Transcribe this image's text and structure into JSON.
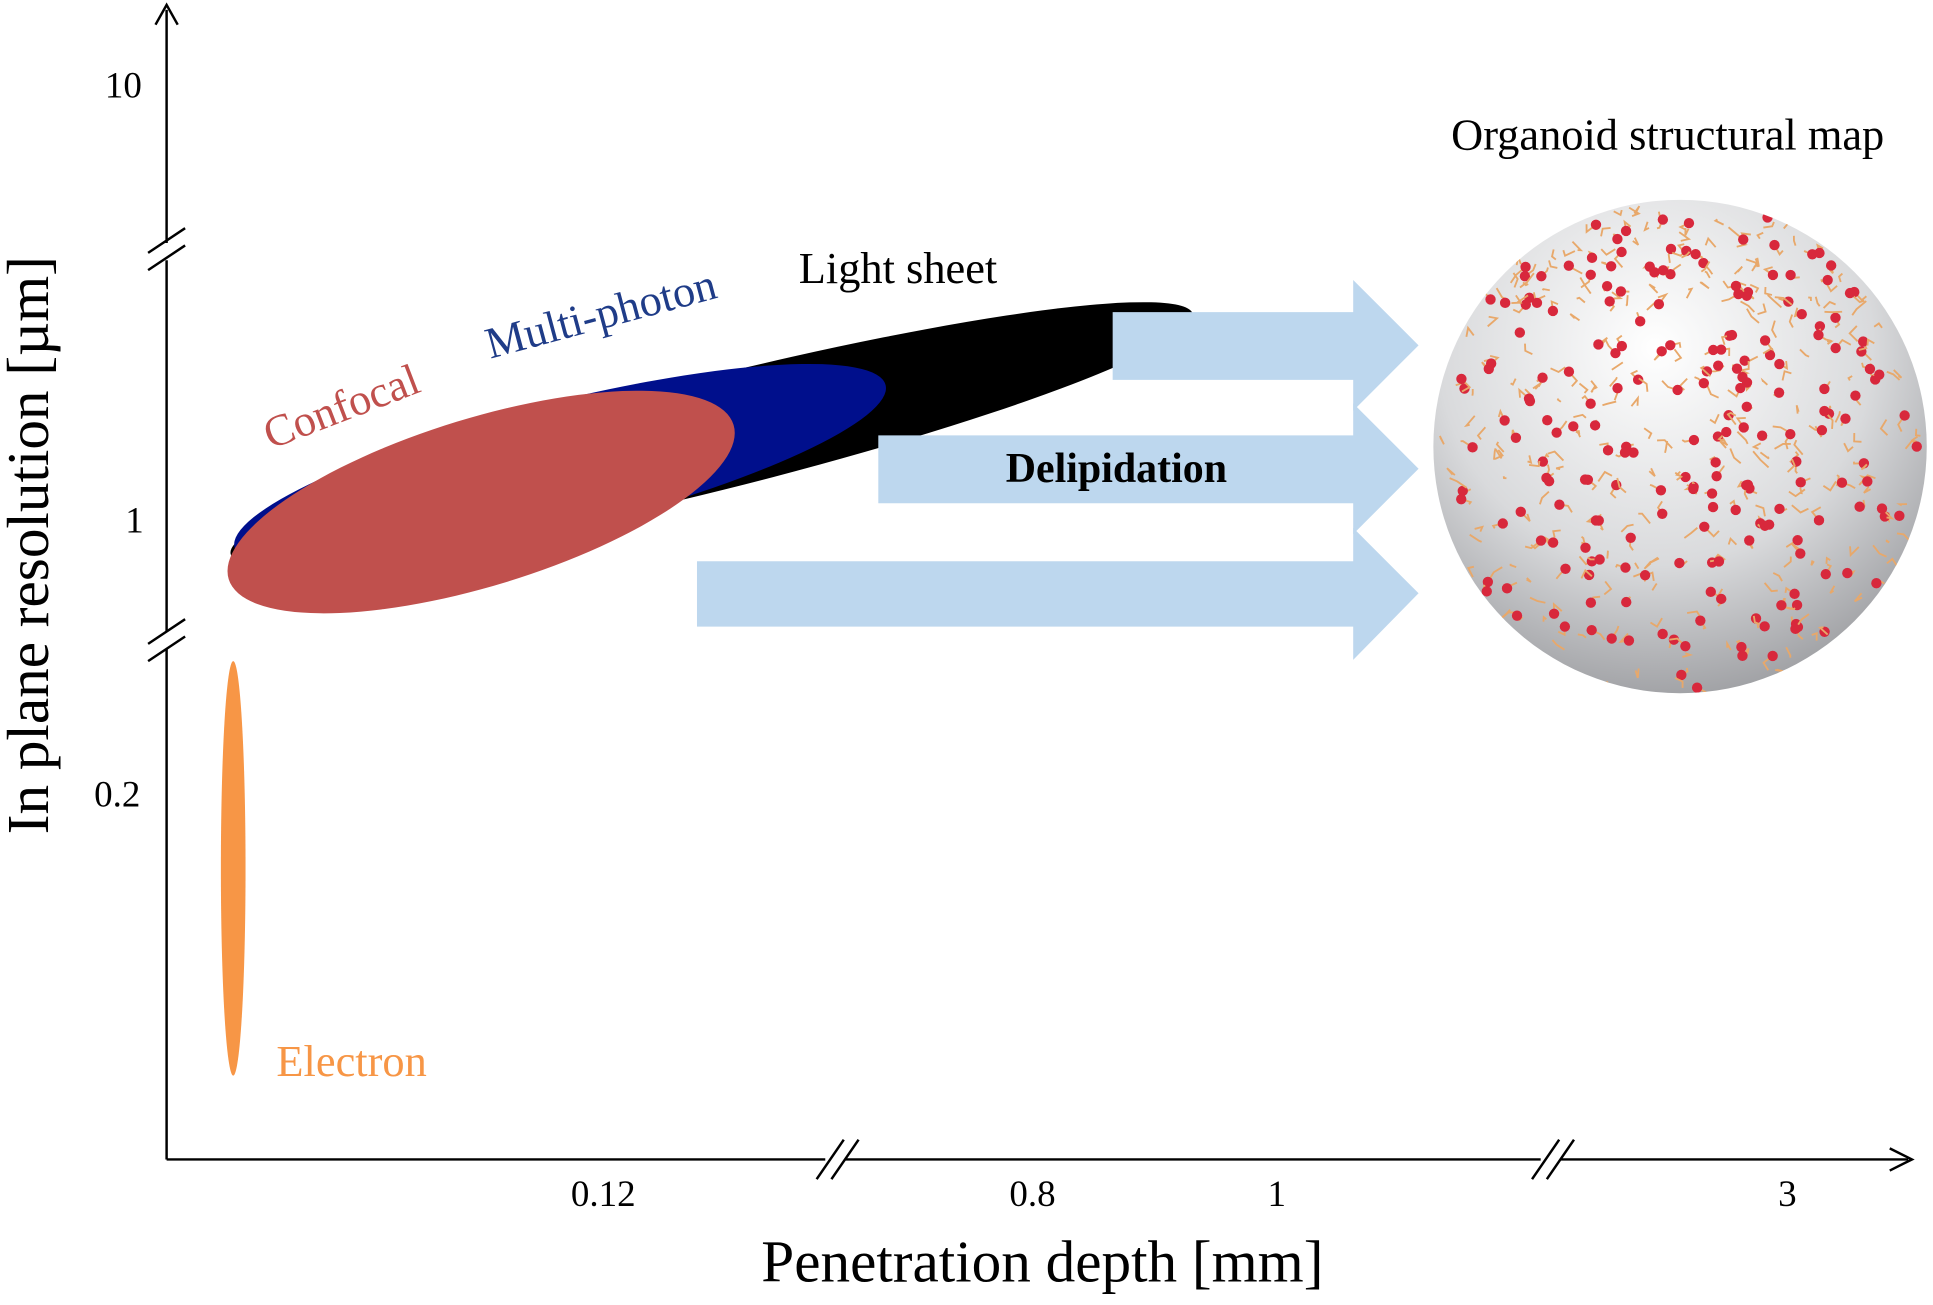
{
  "y_axis": {
    "label": "In plane resolution [µm]",
    "ticks": [
      "10",
      "1",
      "0.2"
    ]
  },
  "x_axis": {
    "label": "Penetration depth [mm]",
    "ticks": [
      "0.12",
      "0.8",
      "1",
      "3"
    ]
  },
  "regions": [
    {
      "label": "Confocal"
    },
    {
      "label": "Multi-photon"
    },
    {
      "label": "Light sheet"
    },
    {
      "label": "Electron"
    }
  ],
  "arrow_label": "Delipidation",
  "map_title": "Organoid structural map"
}
